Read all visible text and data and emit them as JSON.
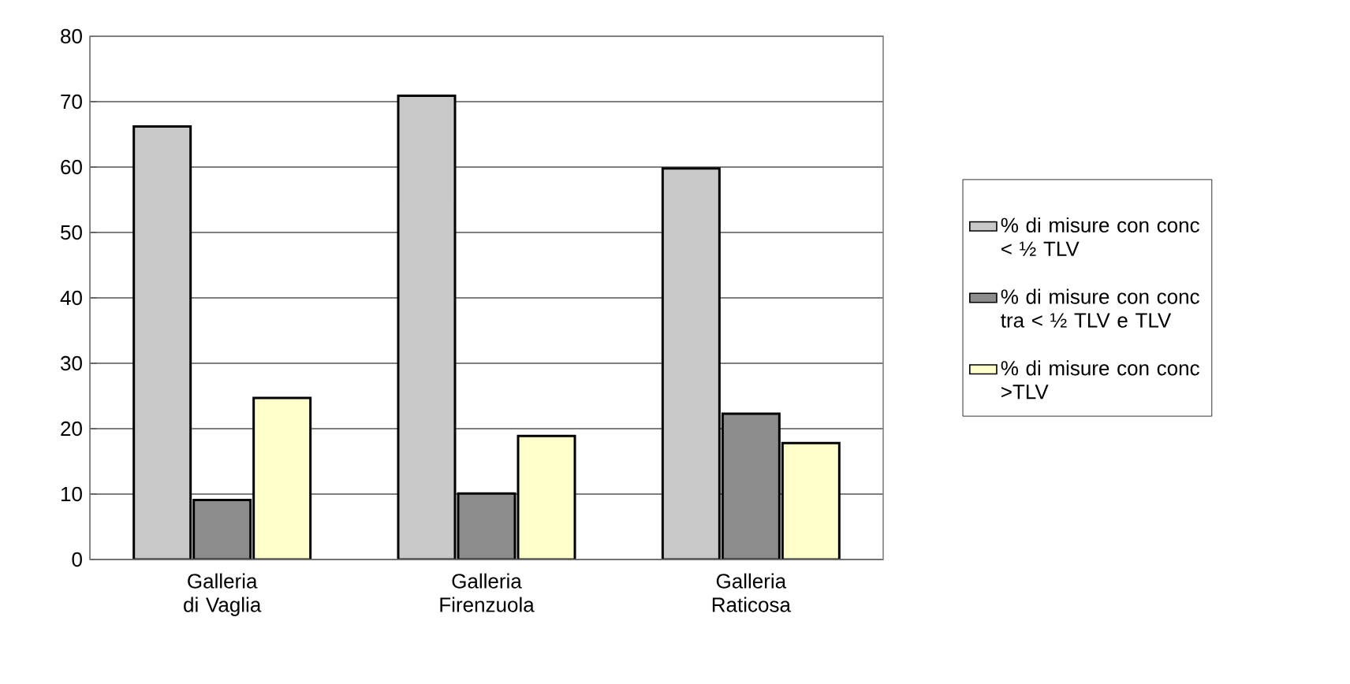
{
  "chart_data": {
    "type": "bar",
    "categories": [
      "Galleria di Vaglia",
      "Galleria Firenzuola",
      "Galleria Raticosa"
    ],
    "series": [
      {
        "name": "% di misure con conc < ½ TLV",
        "color": "#c8c8c8",
        "values": [
          66.2,
          70.9,
          59.8
        ]
      },
      {
        "name": "% di misure con conc tra < ½ TLV e TLV",
        "color": "#8c8c8c",
        "values": [
          9.1,
          10.1,
          22.3
        ]
      },
      {
        "name": "% di misure con conc >TLV",
        "color": "#ffffcc",
        "values": [
          24.7,
          18.9,
          17.8
        ]
      }
    ],
    "ylim": [
      0,
      80
    ],
    "yticks": [
      0,
      10,
      20,
      30,
      40,
      50,
      60,
      70,
      80
    ],
    "grid": "y",
    "legend": "right"
  }
}
